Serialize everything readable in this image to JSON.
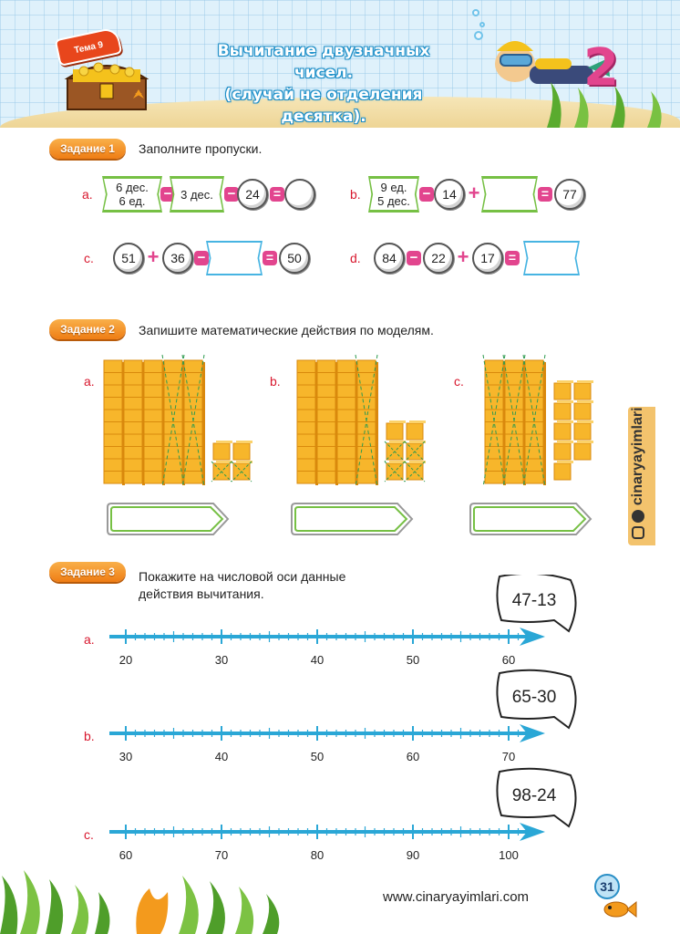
{
  "header": {
    "topic_badge": "Тема 9",
    "title_line1": "Вычитание двузначных чисел.",
    "title_line2": "(случай не отделения десятка)."
  },
  "task1": {
    "label": "Задание 1",
    "instruction": "Заполните пропуски.",
    "a": {
      "letter": "a.",
      "tag1_line1": "6 дес.",
      "tag1_line2": "6 ед.",
      "tag2": "3 дес.",
      "num": "24"
    },
    "b": {
      "letter": "b.",
      "tag_line1": "9 ед.",
      "tag_line2": "5 дес.",
      "num1": "14",
      "result": "77"
    },
    "c": {
      "letter": "c.",
      "num1": "51",
      "num2": "36",
      "result": "50"
    },
    "d": {
      "letter": "d.",
      "num1": "84",
      "num2": "22",
      "num3": "17"
    }
  },
  "task2": {
    "label": "Задание 2",
    "instruction": "Запишите математические действия по моделям.",
    "models": [
      {
        "letter": "a.",
        "tens": 5,
        "crossed_tens": 2,
        "ones": 4,
        "crossed_ones": 2
      },
      {
        "letter": "b.",
        "tens": 4,
        "crossed_tens": 1,
        "ones": 6,
        "crossed_ones": 4
      },
      {
        "letter": "c.",
        "tens": 3,
        "crossed_tens": 3,
        "ones": 9,
        "crossed_ones": 0
      }
    ]
  },
  "task3": {
    "label": "Задание 3",
    "instruction_line1": "Покажите на числовой оси данные",
    "instruction_line2": "действия вычитания.",
    "lines": [
      {
        "letter": "a.",
        "expression": "47-13",
        "labels": [
          "20",
          "30",
          "40",
          "50",
          "60"
        ]
      },
      {
        "letter": "b.",
        "expression": "65-30",
        "labels": [
          "30",
          "40",
          "50",
          "60",
          "70"
        ]
      },
      {
        "letter": "c.",
        "expression": "98-24",
        "labels": [
          "60",
          "70",
          "80",
          "90",
          "100"
        ]
      }
    ]
  },
  "side_tab": "cinaryayimlari",
  "footer": {
    "url": "www.cinaryayimlari.com",
    "page_number": "31"
  },
  "colors": {
    "accent_orange": "#ef7d14",
    "accent_blue": "#47b4e2",
    "accent_green": "#76c044",
    "operator_pink": "#e2458e",
    "letter_red": "#d8182e",
    "block_yellow": "#f7b62b"
  },
  "icons": [
    "treasure-chest-icon",
    "diver-icon",
    "starfish-icon",
    "fish-icon",
    "seaweed-icon",
    "instagram-icon",
    "facebook-icon"
  ]
}
